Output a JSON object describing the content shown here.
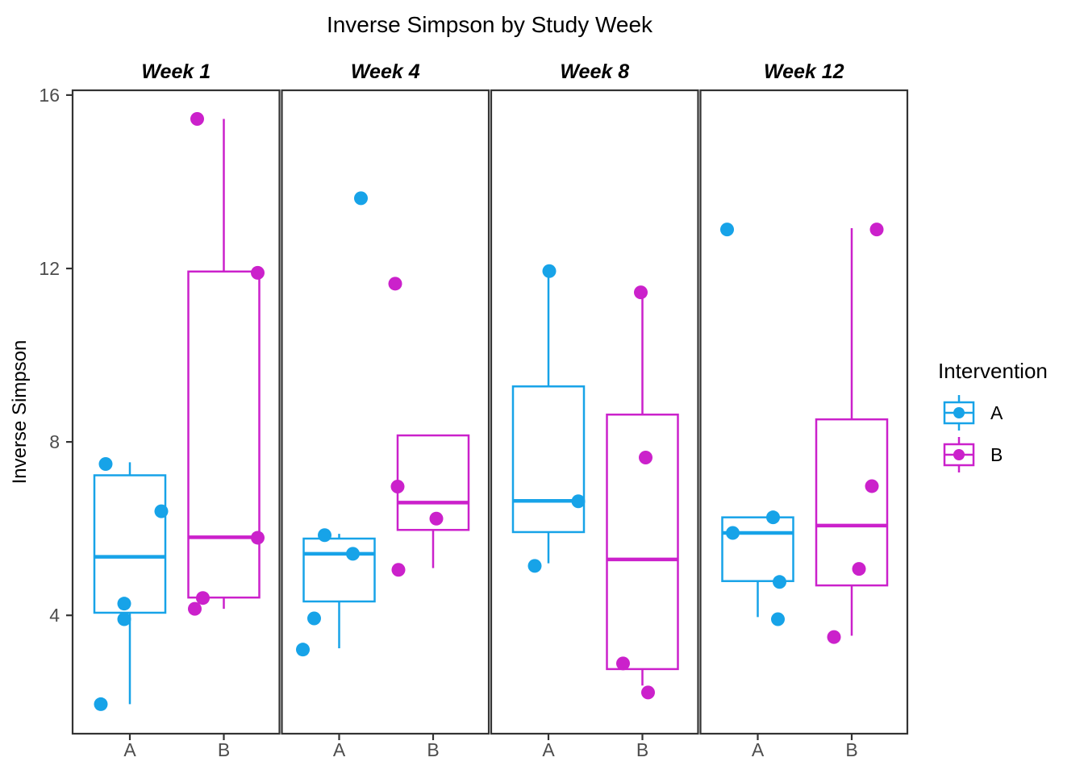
{
  "title": "Inverse Simpson by Study Week",
  "y_axis": {
    "label": "Inverse Simpson",
    "ticks": [
      16,
      12,
      8,
      4
    ]
  },
  "x_axis": {
    "categories": [
      "A",
      "B"
    ]
  },
  "legend": {
    "title": "Intervention",
    "entries": [
      {
        "label": "A",
        "color": "#17A3E8"
      },
      {
        "label": "B",
        "color": "#CB21CB"
      }
    ]
  },
  "colors": {
    "panel_border": "#333333",
    "tick_mark": "#333333",
    "tick_label": "#4D4D4D"
  },
  "chart_data": {
    "type": "grouped-boxplot-with-jitter",
    "title": "Inverse Simpson by Study Week",
    "ylabel": "Inverse Simpson",
    "y_domain": [
      1.27,
      16.11
    ],
    "y_ticks": [
      4,
      8,
      12,
      16
    ],
    "groups": [
      "A",
      "B"
    ],
    "legend_position": "right",
    "grid": false,
    "facets": [
      {
        "label": "Week 1",
        "groups": [
          {
            "name": "A",
            "box": {
              "q1": 4.06,
              "median": 5.35,
              "q3": 7.23,
              "whisker_low": 1.95,
              "whisker_high": 7.53
            },
            "points": [
              {
                "dx": -30,
                "v": 7.49
              },
              {
                "dx": 39,
                "v": 6.4
              },
              {
                "dx": -7,
                "v": 4.27
              },
              {
                "dx": -7,
                "v": 3.91
              },
              {
                "dx": -36,
                "v": 1.95
              }
            ]
          },
          {
            "name": "B",
            "box": {
              "q1": 4.41,
              "median": 5.8,
              "q3": 11.93,
              "whisker_low": 4.15,
              "whisker_high": 15.45
            },
            "points": [
              {
                "dx": -33,
                "v": 15.45
              },
              {
                "dx": 42,
                "v": 11.9
              },
              {
                "dx": 42,
                "v": 5.79
              },
              {
                "dx": -26,
                "v": 4.4
              },
              {
                "dx": -36,
                "v": 4.15
              }
            ]
          }
        ]
      },
      {
        "label": "Week 4",
        "groups": [
          {
            "name": "A",
            "box": {
              "q1": 4.32,
              "median": 5.42,
              "q3": 5.77,
              "whisker_low": 3.24,
              "whisker_high": 5.88
            },
            "points": [
              {
                "dx": 27,
                "v": 13.62
              },
              {
                "dx": -18,
                "v": 5.85
              },
              {
                "dx": 17,
                "v": 5.42
              },
              {
                "dx": -31,
                "v": 3.93
              },
              {
                "dx": -45,
                "v": 3.21
              }
            ]
          },
          {
            "name": "B",
            "box": {
              "q1": 5.97,
              "median": 6.6,
              "q3": 8.15,
              "whisker_low": 5.09,
              "whisker_high": 8.15
            },
            "points": [
              {
                "dx": -47,
                "v": 11.65
              },
              {
                "dx": -44,
                "v": 6.97
              },
              {
                "dx": 4,
                "v": 6.23
              },
              {
                "dx": -43,
                "v": 5.05
              }
            ]
          }
        ]
      },
      {
        "label": "Week 8",
        "groups": [
          {
            "name": "A",
            "box": {
              "q1": 5.92,
              "median": 6.64,
              "q3": 9.28,
              "whisker_low": 5.2,
              "whisker_high": 11.94
            },
            "points": [
              {
                "dx": 1,
                "v": 11.94
              },
              {
                "dx": 37,
                "v": 6.63
              },
              {
                "dx": -17,
                "v": 5.14
              }
            ]
          },
          {
            "name": "B",
            "box": {
              "q1": 2.76,
              "median": 5.29,
              "q3": 8.63,
              "whisker_low": 2.38,
              "whisker_high": 11.45
            },
            "points": [
              {
                "dx": -2,
                "v": 11.45
              },
              {
                "dx": 4,
                "v": 7.64
              },
              {
                "dx": -24,
                "v": 2.89
              },
              {
                "dx": 7,
                "v": 2.22
              }
            ]
          }
        ]
      },
      {
        "label": "Week 12",
        "groups": [
          {
            "name": "A",
            "box": {
              "q1": 4.79,
              "median": 5.9,
              "q3": 6.26,
              "whisker_low": 3.96,
              "whisker_high": 6.26
            },
            "points": [
              {
                "dx": -38,
                "v": 12.9
              },
              {
                "dx": 19,
                "v": 6.26
              },
              {
                "dx": -31,
                "v": 5.9
              },
              {
                "dx": 27,
                "v": 4.77
              },
              {
                "dx": 25,
                "v": 3.91
              }
            ]
          },
          {
            "name": "B",
            "box": {
              "q1": 4.69,
              "median": 6.07,
              "q3": 8.52,
              "whisker_low": 3.53,
              "whisker_high": 12.93
            },
            "points": [
              {
                "dx": 31,
                "v": 12.9
              },
              {
                "dx": 25,
                "v": 6.98
              },
              {
                "dx": 9,
                "v": 5.07
              },
              {
                "dx": -22,
                "v": 3.5
              }
            ]
          }
        ]
      }
    ]
  }
}
